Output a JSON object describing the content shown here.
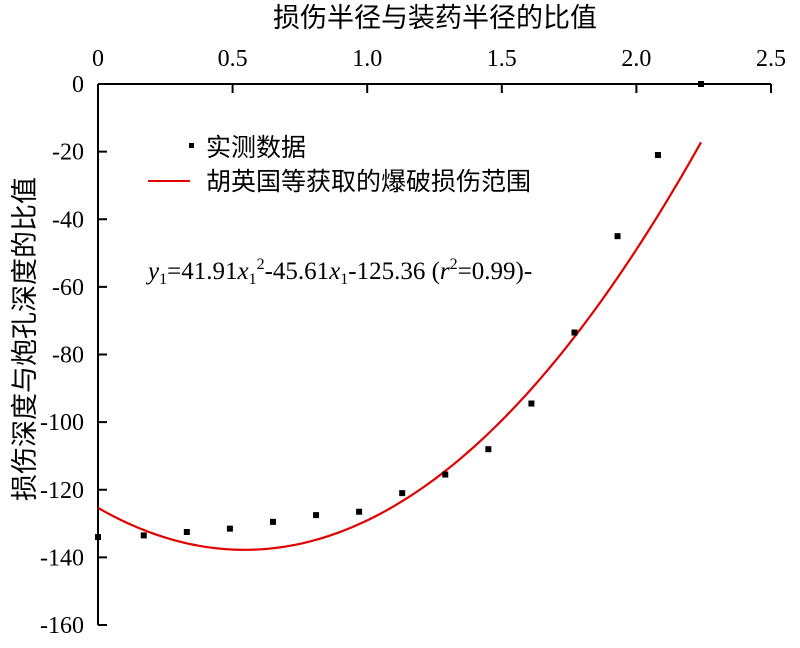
{
  "chart_data": {
    "type": "scatter",
    "xlabel": "损伤半径与装药半径的比值",
    "ylabel": "损伤深度与炮孔深度的比值",
    "xlim": [
      0,
      2.5
    ],
    "ylim": [
      -160,
      0
    ],
    "x_ticks": [
      "0",
      "0.5",
      "1.0",
      "1.5",
      "2.0",
      "2.5"
    ],
    "y_ticks": [
      "0",
      "-20",
      "-40",
      "-60",
      "-80",
      "-100",
      "-120",
      "-140",
      "-160"
    ],
    "x_axis_position": "top",
    "grid": false,
    "legend_position": "top-left",
    "series": [
      {
        "name": "实测数据",
        "kind": "scatter",
        "color": "#000000",
        "x": [
          0.0,
          0.17,
          0.33,
          0.49,
          0.65,
          0.81,
          0.97,
          1.13,
          1.29,
          1.45,
          1.61,
          1.77,
          1.93,
          2.08,
          2.24
        ],
        "y": [
          -134,
          -133.5,
          -132.5,
          -131.5,
          -129.5,
          -127.5,
          -126.5,
          -121,
          -115.5,
          -108,
          -94.5,
          -73.5,
          -45,
          -21,
          0
        ]
      },
      {
        "name": "胡英国等获取的爆破损伤范围",
        "kind": "line",
        "color": "#e00000",
        "equation": {
          "a": 41.91,
          "b": -45.61,
          "c": -125.36
        },
        "x_range": [
          0,
          2.24
        ]
      }
    ],
    "annotation": {
      "y": "y",
      "y_sub": "1",
      "eq1": "=41.91",
      "x1": "x",
      "x1_sub": "1",
      "x1_sup": "2",
      "eq2": "-45.61",
      "x2": "x",
      "x2_sub": "1",
      "eq3": "-125.36 (",
      "r": "r",
      "r_sup": "2",
      "eq4": "=0.99)-"
    }
  }
}
